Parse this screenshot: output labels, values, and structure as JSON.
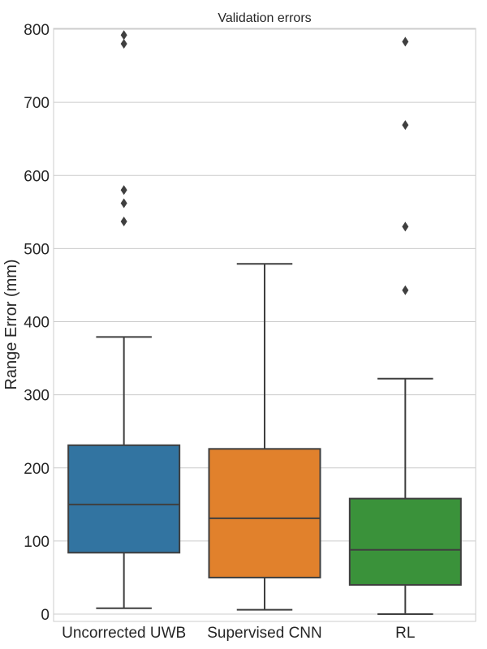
{
  "chart_data": {
    "type": "box",
    "title": "Validation errors",
    "xlabel": "",
    "ylabel": "Range Error (mm)",
    "ylim": [
      -10,
      800
    ],
    "yticks": [
      0,
      100,
      200,
      300,
      400,
      500,
      600,
      700,
      800
    ],
    "grid": "horizontal",
    "categories": [
      "Uncorrected UWB",
      "Supervised CNN",
      "RL"
    ],
    "series": [
      {
        "category": "Uncorrected UWB",
        "color": "#3274a1",
        "whisker_low": 8,
        "q1": 84,
        "median": 150,
        "q3": 231,
        "whisker_high": 379,
        "outliers": [
          537,
          562,
          580,
          780,
          792
        ]
      },
      {
        "category": "Supervised CNN",
        "color": "#e1812c",
        "whisker_low": 6,
        "q1": 50,
        "median": 131,
        "q3": 226,
        "whisker_high": 479,
        "outliers": []
      },
      {
        "category": "RL",
        "color": "#3a923a",
        "whisker_low": 0,
        "q1": 40,
        "median": 88,
        "q3": 158,
        "whisker_high": 322,
        "outliers": [
          443,
          530,
          669,
          783
        ]
      }
    ]
  }
}
